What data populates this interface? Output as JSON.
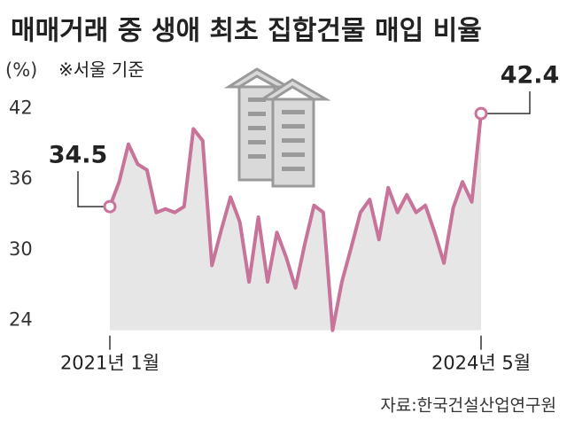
{
  "chart_data": {
    "type": "line",
    "title": "매매거래 중 생애 최초 집합건물 매입 비율",
    "y_label": "(%)",
    "note": "※서울 기준",
    "source": "자료:한국건설산업연구원",
    "categories": [
      "2021년 1월",
      null,
      null,
      null,
      null,
      null,
      null,
      null,
      null,
      null,
      null,
      null,
      null,
      null,
      null,
      null,
      null,
      null,
      null,
      null,
      null,
      null,
      null,
      null,
      null,
      null,
      null,
      null,
      null,
      null,
      null,
      null,
      null,
      null,
      null,
      null,
      null,
      null,
      null,
      null,
      "2024년 5월"
    ],
    "series": [
      {
        "name": "생애 최초 집합건물 매입 비율",
        "color": "#c8739a",
        "values": [
          34.5,
          36.6,
          39.8,
          38.1,
          37.6,
          34.0,
          34.3,
          34.0,
          34.5,
          41.1,
          40.1,
          29.5,
          32.5,
          35.3,
          33.2,
          28.1,
          33.6,
          28.1,
          32.3,
          30.2,
          27.6,
          31.3,
          34.6,
          34.0,
          24.0,
          28.1,
          31.0,
          34.0,
          35.1,
          31.7,
          36.1,
          34.0,
          35.5,
          34.0,
          34.6,
          32.3,
          29.7,
          34.4,
          36.6,
          34.9,
          42.4
        ]
      }
    ],
    "ylim": [
      24,
      42
    ],
    "yticks": [
      24,
      30,
      36,
      42
    ],
    "area_color": "#e6e6e6",
    "grid": false
  }
}
